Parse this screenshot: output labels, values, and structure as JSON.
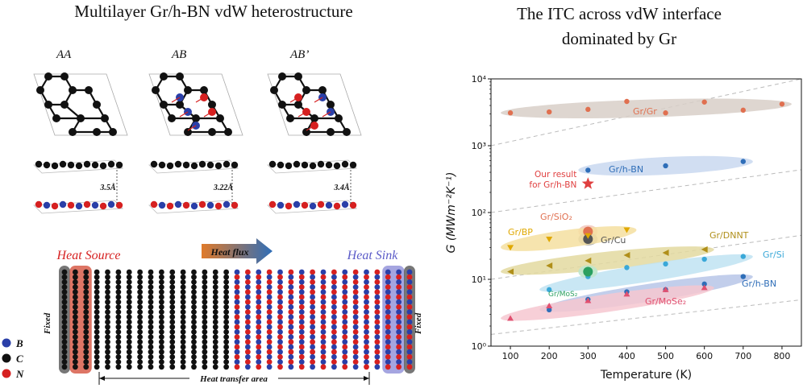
{
  "left_panel": {
    "title": "Multilayer Gr/h-BN vdW heterostructure",
    "stackings": [
      {
        "label": "AA",
        "spacing": "3.5Å"
      },
      {
        "label": "AB",
        "spacing": "3.22Å"
      },
      {
        "label": "AB’",
        "spacing": "3.4Å"
      }
    ],
    "heat_source": "Heat Source",
    "heat_sink": "Heat Sink",
    "heat_flux": "Heat flux",
    "heat_transfer_area": "Heat transfer area",
    "fixed_left": "Fixed",
    "fixed_right": "Fixed",
    "legend": [
      {
        "label": "B",
        "color": "#2a3fa8"
      },
      {
        "label": "C",
        "color": "#111111"
      },
      {
        "label": "N",
        "color": "#d62020"
      }
    ],
    "chains": {
      "fixed": 1,
      "source": 2,
      "carbon": 13,
      "bn": 14,
      "sink": 2
    },
    "colors": {
      "source_bg": "#d4533f",
      "sink_bg": "#8e8ed8",
      "fixed_bg": "#555555",
      "flux_start": "#e07a2a",
      "flux_end": "#2f6eb8"
    }
  },
  "right_panel": {
    "title_line1": "The ITC across vdW interface",
    "title_line2": "dominated by Gr"
  },
  "chart_data": {
    "type": "scatter",
    "title": "",
    "xlabel": "Temperature (K)",
    "ylabel": "G (MWm⁻²K⁻¹)",
    "xlim": [
      50,
      850
    ],
    "ylim": [
      1,
      10000
    ],
    "yscale": "log",
    "x_ticks": [
      100,
      200,
      300,
      400,
      500,
      600,
      700,
      800
    ],
    "y_ticks": [
      {
        "value": 1,
        "label": "10⁰"
      },
      {
        "value": 10,
        "label": "10¹"
      },
      {
        "value": 100,
        "label": "10²"
      },
      {
        "value": 1000,
        "label": "10³"
      },
      {
        "value": 10000,
        "label": "10⁴"
      }
    ],
    "series": [
      {
        "name": "Gr/Gr",
        "color": "#e07050",
        "band_color": "#d8cfc8",
        "marker": "circle",
        "x": [
          100,
          200,
          300,
          400,
          500,
          600,
          700,
          800
        ],
        "y": [
          3100,
          3200,
          3500,
          4600,
          3100,
          4500,
          3400,
          4200
        ]
      },
      {
        "name": "Gr/h-BN",
        "color": "#2f6eb8",
        "band_color": "#c9d8f0",
        "marker": "circle",
        "x": [
          300,
          500,
          700
        ],
        "y": [
          430,
          500,
          580
        ]
      },
      {
        "name": "Gr/SiO₂",
        "color": "#e07050",
        "band_color": "#f3c9bf",
        "marker": "circle",
        "x": [
          300
        ],
        "y": [
          52
        ]
      },
      {
        "name": "Gr/Cu",
        "color": "#555555",
        "band_color": "#b0b0b0",
        "marker": "circle",
        "x": [
          300
        ],
        "y": [
          40
        ]
      },
      {
        "name": "Gr/BP",
        "color": "#e0a800",
        "band_color": "#f5dfa0",
        "marker": "triangle-down",
        "x": [
          100,
          200,
          300,
          400
        ],
        "y": [
          30,
          40,
          45,
          55
        ]
      },
      {
        "name": "Gr/DNNT",
        "color": "#b08f1a",
        "band_color": "#e3d9a0",
        "marker": "triangle-left",
        "x": [
          100,
          200,
          300,
          400,
          500,
          600
        ],
        "y": [
          13,
          16,
          19,
          23,
          25,
          28
        ]
      },
      {
        "name": "Gr/Si",
        "color": "#3aa8d8",
        "band_color": "#bfe3f2",
        "marker": "circle",
        "x": [
          200,
          300,
          400,
          500,
          600,
          700
        ],
        "y": [
          7,
          11,
          15,
          17,
          20,
          22
        ]
      },
      {
        "name": "Gr/MoS₂",
        "color": "#2aa060",
        "band_color": "#bfe6cc",
        "marker": "circle",
        "x": [
          300
        ],
        "y": [
          13
        ]
      },
      {
        "name": "Gr/h-BN",
        "color": "#2f6eb8",
        "band_color": "#b7c5e8",
        "marker": "circle",
        "x": [
          200,
          300,
          400,
          500,
          600,
          700
        ],
        "y": [
          3.5,
          5,
          6.5,
          7,
          8.5,
          11
        ]
      },
      {
        "name": "Gr/MoSe₂",
        "color": "#e05070",
        "band_color": "#f6c7d0",
        "marker": "triangle-up",
        "x": [
          100,
          200,
          300,
          400,
          500,
          600
        ],
        "y": [
          2.6,
          4,
          4.8,
          6,
          7,
          7.5
        ]
      }
    ],
    "our_result": {
      "label_line1": "Our result",
      "label_line2": "for Gr/h-BN",
      "x": 300,
      "y": 270,
      "color": "#e04040"
    },
    "grid": false
  }
}
